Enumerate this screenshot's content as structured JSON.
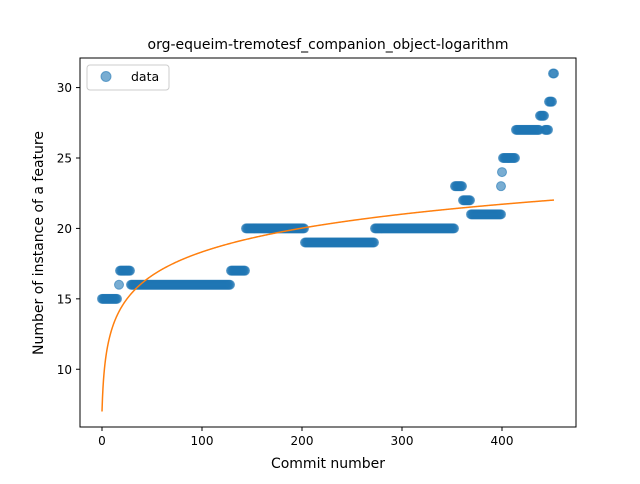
{
  "chart_data": {
    "type": "scatter",
    "title": "org-equeim-tremotesf_companion_object-logarithm",
    "xlabel": "Commit number",
    "ylabel": "Number of instance of a feature",
    "xlim": [
      -22,
      474
    ],
    "ylim": [
      5.9,
      32.1
    ],
    "xticks": [
      0,
      100,
      200,
      300,
      400
    ],
    "yticks": [
      10,
      15,
      20,
      25,
      30
    ],
    "legend": {
      "position": "upper-left",
      "entries": [
        "data"
      ]
    },
    "grid": false,
    "colors": {
      "points": "#1f77b4",
      "fit": "#ff7f0e",
      "axes": "#000000"
    },
    "data_segments": [
      {
        "x_start": 0,
        "x_end": 15,
        "y": 15
      },
      {
        "x_start": 17,
        "x_end": 17,
        "y": 16
      },
      {
        "x_start": 18,
        "x_end": 28,
        "y": 17
      },
      {
        "x_start": 29,
        "x_end": 128,
        "y": 16
      },
      {
        "x_start": 129,
        "x_end": 143,
        "y": 17
      },
      {
        "x_start": 144,
        "x_end": 202,
        "y": 20
      },
      {
        "x_start": 203,
        "x_end": 272,
        "y": 19
      },
      {
        "x_start": 273,
        "x_end": 352,
        "y": 20
      },
      {
        "x_start": 353,
        "x_end": 360,
        "y": 23
      },
      {
        "x_start": 361,
        "x_end": 368,
        "y": 22
      },
      {
        "x_start": 369,
        "x_end": 399,
        "y": 21
      },
      {
        "x_start": 399,
        "x_end": 399,
        "y": 23
      },
      {
        "x_start": 400,
        "x_end": 400,
        "y": 24
      },
      {
        "x_start": 401,
        "x_end": 413,
        "y": 25
      },
      {
        "x_start": 414,
        "x_end": 437,
        "y": 27
      },
      {
        "x_start": 438,
        "x_end": 442,
        "y": 28
      },
      {
        "x_start": 443,
        "x_end": 446,
        "y": 27
      },
      {
        "x_start": 447,
        "x_end": 450,
        "y": 29
      },
      {
        "x_start": 451,
        "x_end": 452,
        "y": 31
      }
    ],
    "fit_series": {
      "model": "logarithm",
      "x_range": [
        0,
        452
      ],
      "x_offset": 1,
      "a": 7.0,
      "b": 2.455
    }
  }
}
